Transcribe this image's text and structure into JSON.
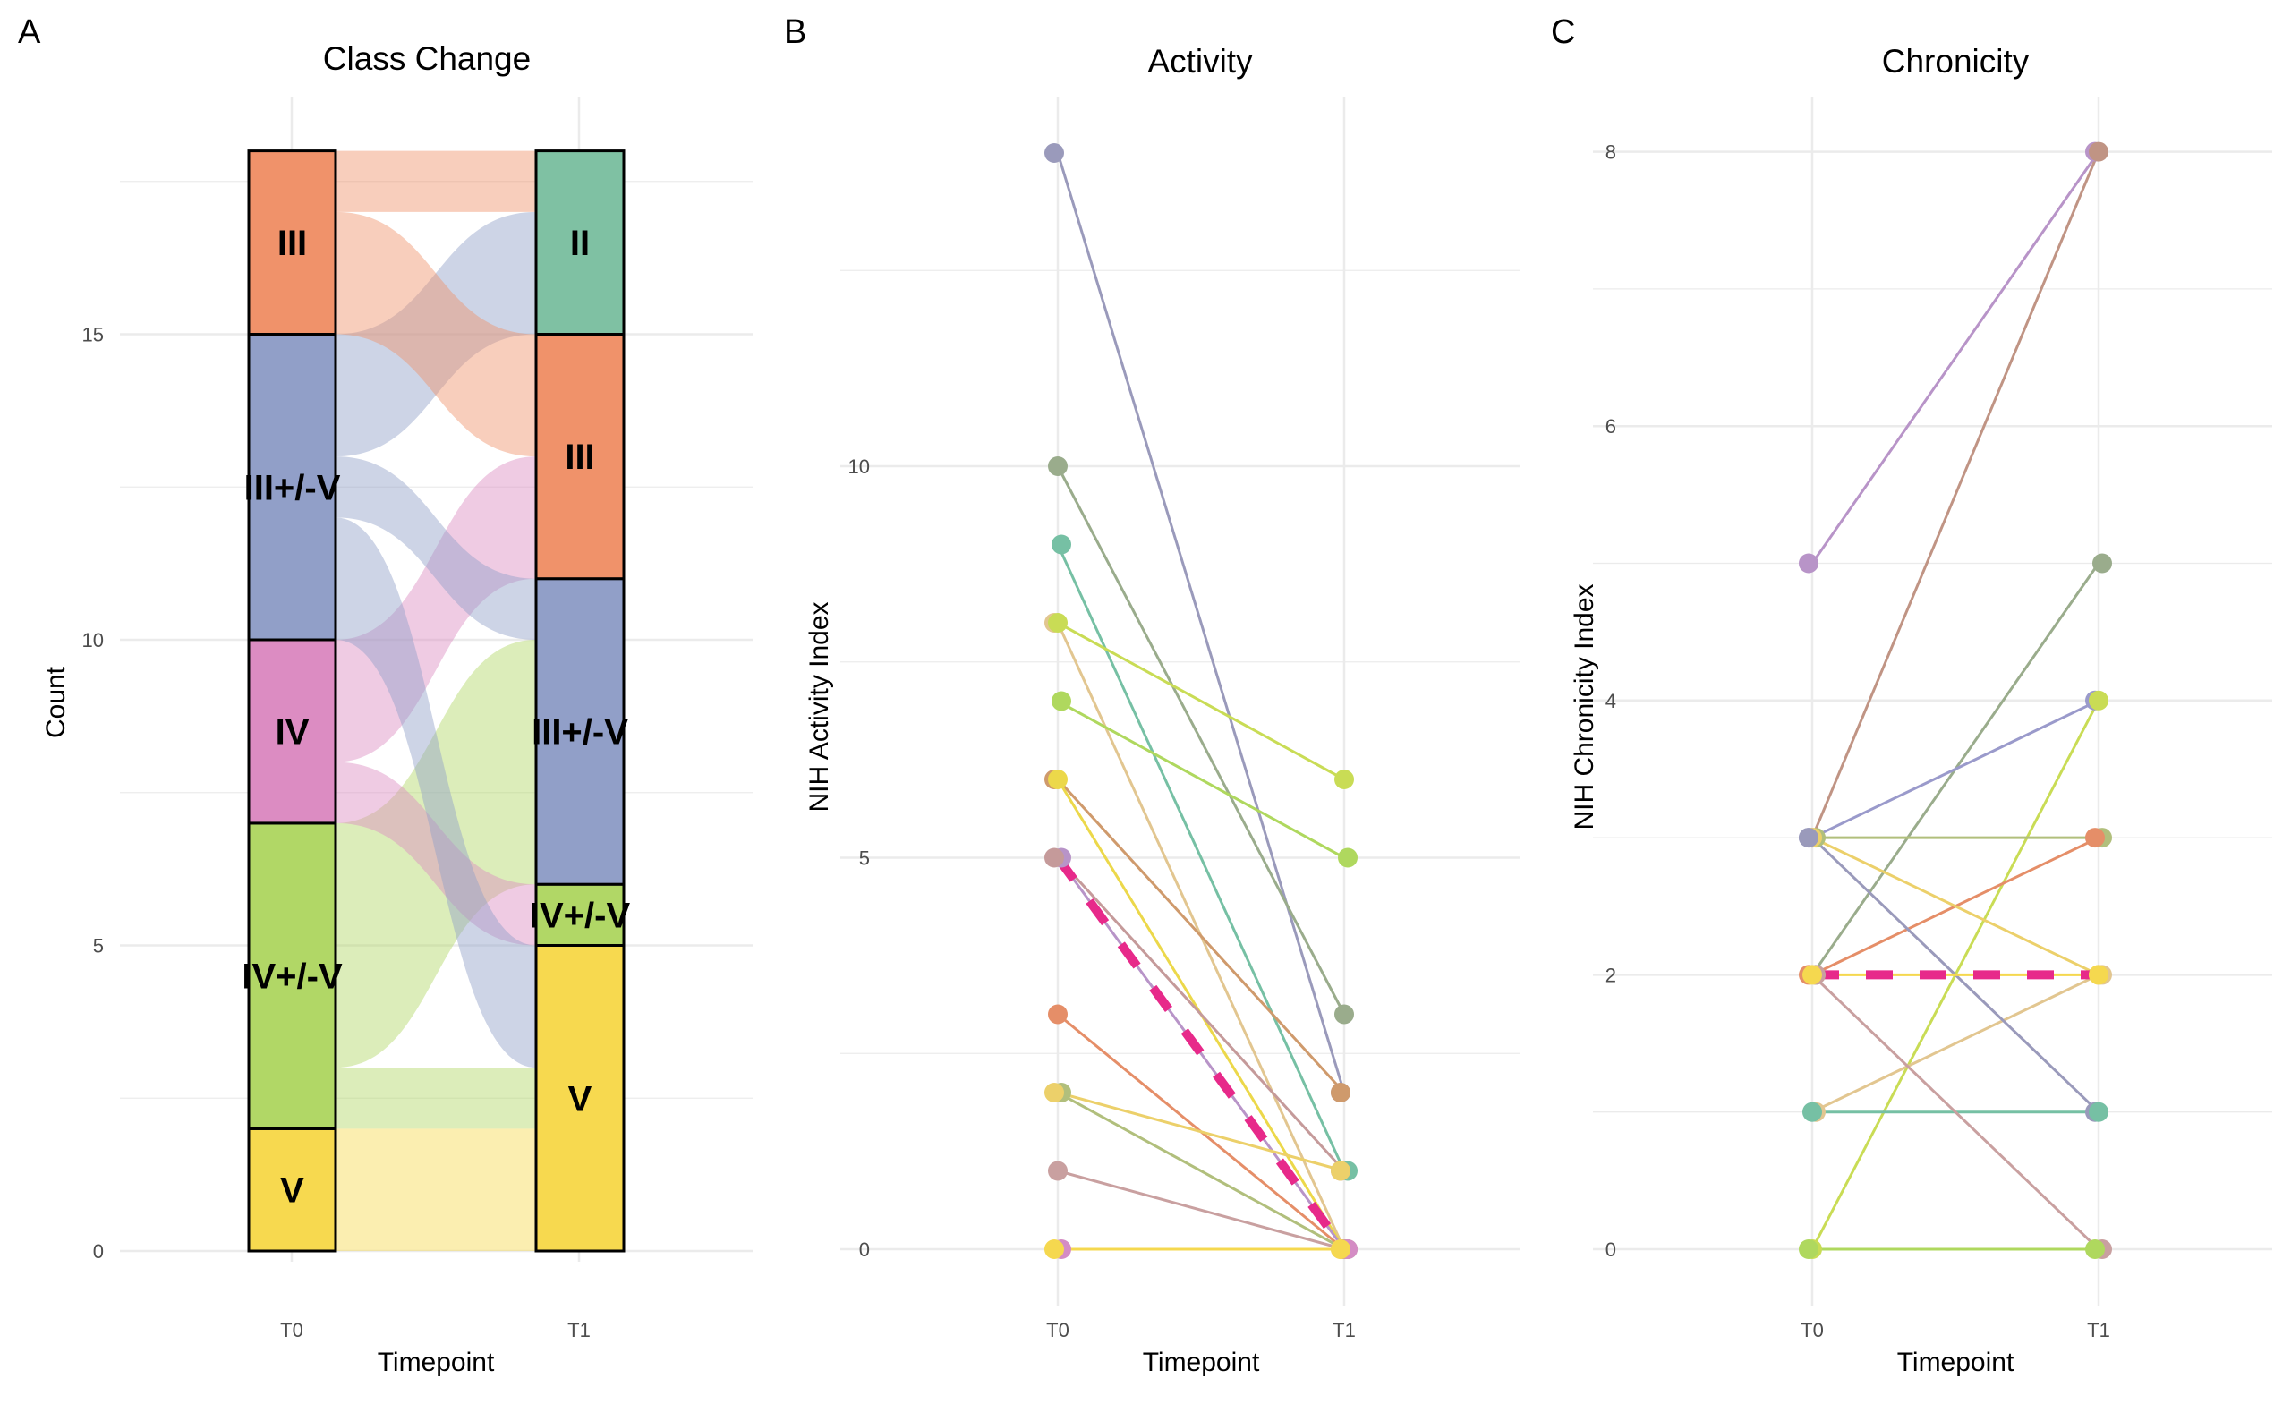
{
  "panels": {
    "a": "A",
    "b": "B",
    "c": "C"
  },
  "chart_data": [
    {
      "type": "alluvial",
      "title": "Class Change",
      "xlabel": "Timepoint",
      "ylabel": "Count",
      "categories": [
        "T0",
        "T1"
      ],
      "yticks": [
        0,
        5,
        10,
        15
      ],
      "ylim": [
        0,
        18
      ],
      "grid": true,
      "class_colors": {
        "II": "#7fc1a3",
        "III": "#f0926a",
        "III+/-V": "#919fc8",
        "IV": "#dc8cc2",
        "IV+/-V": "#b1d766",
        "V": "#f7d94f"
      },
      "strata": {
        "T0": [
          {
            "label": "V",
            "count": 2
          },
          {
            "label": "IV+/-V",
            "count": 5
          },
          {
            "label": "IV",
            "count": 3
          },
          {
            "label": "III+/-V",
            "count": 5
          },
          {
            "label": "III",
            "count": 3
          }
        ],
        "T1": [
          {
            "label": "V",
            "count": 5
          },
          {
            "label": "IV+/-V",
            "count": 1
          },
          {
            "label": "III+/-V",
            "count": 5
          },
          {
            "label": "III",
            "count": 4
          },
          {
            "label": "II",
            "count": 3
          }
        ]
      },
      "flows": [
        {
          "from": "V",
          "to": "V",
          "value": 2
        },
        {
          "from": "IV+/-V",
          "to": "V",
          "value": 1
        },
        {
          "from": "IV+/-V",
          "to": "III+/-V",
          "value": 4
        },
        {
          "from": "IV",
          "to": "IV+/-V",
          "value": 1
        },
        {
          "from": "IV",
          "to": "III",
          "value": 2
        },
        {
          "from": "III+/-V",
          "to": "V",
          "value": 2
        },
        {
          "from": "III+/-V",
          "to": "III+/-V",
          "value": 1
        },
        {
          "from": "III+/-V",
          "to": "II",
          "value": 2
        },
        {
          "from": "III",
          "to": "III",
          "value": 2
        },
        {
          "from": "III",
          "to": "II",
          "value": 1
        }
      ]
    },
    {
      "type": "line",
      "title": "Activity",
      "xlabel": "Timepoint",
      "ylabel": "NIH Activity Index",
      "categories": [
        "T0",
        "T1"
      ],
      "yticks": [
        0,
        5,
        10
      ],
      "ylim": [
        -0.7,
        14.2
      ],
      "grid": true,
      "series": [
        {
          "values": [
            14,
            2
          ],
          "color": "#9a9abb"
        },
        {
          "values": [
            10,
            3
          ],
          "color": "#9aac8c"
        },
        {
          "values": [
            9,
            1
          ],
          "color": "#76c0a4"
        },
        {
          "values": [
            8,
            0
          ],
          "color": "#e2c690"
        },
        {
          "values": [
            8,
            6
          ],
          "color": "#c9dc55"
        },
        {
          "values": [
            7,
            5
          ],
          "color": "#afd85e"
        },
        {
          "values": [
            6,
            2
          ],
          "color": "#cf9a6c"
        },
        {
          "values": [
            6,
            0
          ],
          "color": "#ecd84a"
        },
        {
          "values": [
            5,
            0
          ],
          "color": "#b894c8"
        },
        {
          "values": [
            5,
            1
          ],
          "color": "#c59a9a"
        },
        {
          "values": [
            3,
            0
          ],
          "color": "#e58e68"
        },
        {
          "values": [
            2,
            0
          ],
          "color": "#b1bf7c"
        },
        {
          "values": [
            2,
            1
          ],
          "color": "#ecd06a"
        },
        {
          "values": [
            1,
            0
          ],
          "color": "#c9a0a0"
        },
        {
          "values": [
            0,
            0
          ],
          "color": "#d48cc4"
        },
        {
          "values": [
            0,
            0
          ],
          "color": "#f5d84f"
        }
      ],
      "median": {
        "values": [
          5,
          0
        ],
        "color": "#e7298a",
        "style": "dashed"
      }
    },
    {
      "type": "line",
      "title": "Chronicity",
      "xlabel": "Timepoint",
      "ylabel": "NIH Chronicity Index",
      "categories": [
        "T0",
        "T1"
      ],
      "yticks": [
        0,
        2,
        4,
        6,
        8
      ],
      "ylim": [
        -0.4,
        8.3
      ],
      "grid": true,
      "series": [
        {
          "values": [
            5,
            8
          ],
          "color": "#b894c8"
        },
        {
          "values": [
            3,
            8
          ],
          "color": "#c09484"
        },
        {
          "values": [
            2,
            5
          ],
          "color": "#9aac8c"
        },
        {
          "values": [
            3,
            4
          ],
          "color": "#9a9acb"
        },
        {
          "values": [
            0,
            4
          ],
          "color": "#c9dc55"
        },
        {
          "values": [
            3,
            3
          ],
          "color": "#b1bf7c"
        },
        {
          "values": [
            2,
            3
          ],
          "color": "#e58e68"
        },
        {
          "values": [
            3,
            2
          ],
          "color": "#ecd06a"
        },
        {
          "values": [
            1,
            2
          ],
          "color": "#e2c690"
        },
        {
          "values": [
            3,
            1
          ],
          "color": "#9a9abb"
        },
        {
          "values": [
            1,
            1
          ],
          "color": "#76c0a4"
        },
        {
          "values": [
            2,
            0
          ],
          "color": "#c9a0a0"
        },
        {
          "values": [
            0,
            0
          ],
          "color": "#afd85e"
        },
        {
          "values": [
            2,
            2
          ],
          "color": "#f5d84f"
        }
      ],
      "median": {
        "values": [
          2,
          2
        ],
        "color": "#e7298a",
        "style": "dashed"
      }
    }
  ]
}
